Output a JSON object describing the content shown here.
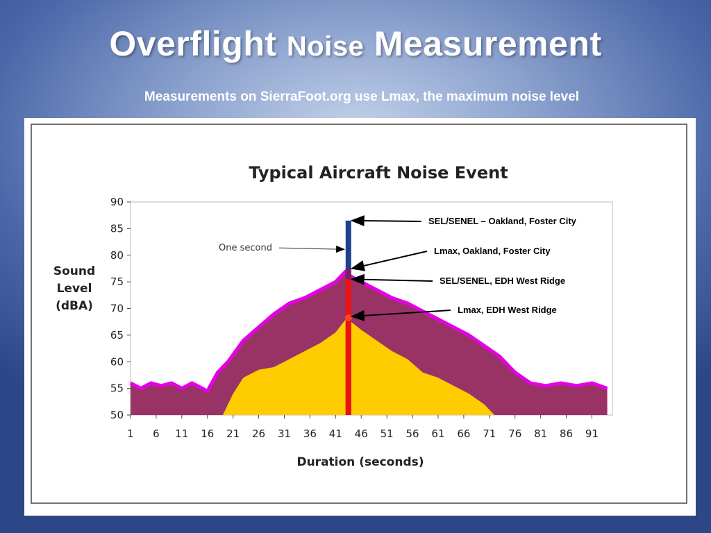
{
  "slide": {
    "title_part1": "Overflight ",
    "title_part2": "Noise",
    "title_part3": " Measurement",
    "subtitle": "Measurements on SierraFoot.org use Lmax, the maximum noise level"
  },
  "chart_data": {
    "type": "area",
    "title": "Typical Aircraft Noise Event",
    "xlabel": "Duration (seconds)",
    "ylabel_lines": [
      "Sound",
      "Level",
      "(dBA)"
    ],
    "ylim": [
      50,
      90
    ],
    "xlim": [
      1,
      95
    ],
    "x_ticks": [
      1,
      6,
      11,
      16,
      21,
      26,
      31,
      36,
      41,
      46,
      51,
      56,
      61,
      66,
      71,
      76,
      81,
      86,
      91
    ],
    "y_ticks": [
      50,
      55,
      60,
      65,
      70,
      75,
      80,
      85,
      90
    ],
    "colors": {
      "upper_area": "#993366",
      "upper_edge": "#e600e6",
      "lower_area": "#ffcc00",
      "one_second_bar": "#1f3f8f",
      "lmax_bar": "#ee1111"
    },
    "series": [
      {
        "name": "Oakland, Foster City",
        "x": [
          1,
          3,
          5,
          7,
          9,
          11,
          13,
          15,
          16,
          18,
          20,
          23,
          26,
          29,
          32,
          35,
          38,
          41,
          43,
          44,
          46,
          49,
          52,
          55,
          58,
          61,
          64,
          67,
          70,
          73,
          76,
          79,
          82,
          85,
          88,
          91,
          94
        ],
        "values": [
          56,
          55,
          56,
          55.5,
          56,
          55,
          56,
          55,
          54.5,
          58,
          60,
          64,
          66.5,
          69,
          71,
          72,
          73.5,
          75,
          77,
          76,
          75,
          73.5,
          72,
          71,
          69.5,
          68,
          66.5,
          65,
          63,
          61,
          58,
          56,
          55.5,
          56,
          55.5,
          56,
          55
        ]
      },
      {
        "name": "EDH West Ridge",
        "x": [
          19,
          21,
          23,
          26,
          29,
          32,
          35,
          38,
          41,
          43,
          44,
          46,
          49,
          52,
          55,
          58,
          61,
          64,
          67,
          70,
          72
        ],
        "values": [
          50,
          54,
          57,
          58.5,
          59,
          60.5,
          62,
          63.5,
          65.5,
          68,
          67.5,
          66,
          64,
          62,
          60.5,
          58,
          57,
          55.5,
          54,
          52,
          50
        ]
      }
    ],
    "one_second_event": {
      "x": 43.5,
      "range": [
        50,
        86.5
      ]
    },
    "labels": [
      {
        "text": "One second"
      },
      {
        "text": "SEL/SENEL – Oakland, Foster City",
        "value": 86.5
      },
      {
        "text": "Lmax, Oakland, Foster City",
        "value": 77.5
      },
      {
        "text": "SEL/SENEL, EDH West Ridge",
        "value": 75.5
      },
      {
        "text": "Lmax, EDH West Ridge",
        "value": 68.5
      }
    ]
  }
}
